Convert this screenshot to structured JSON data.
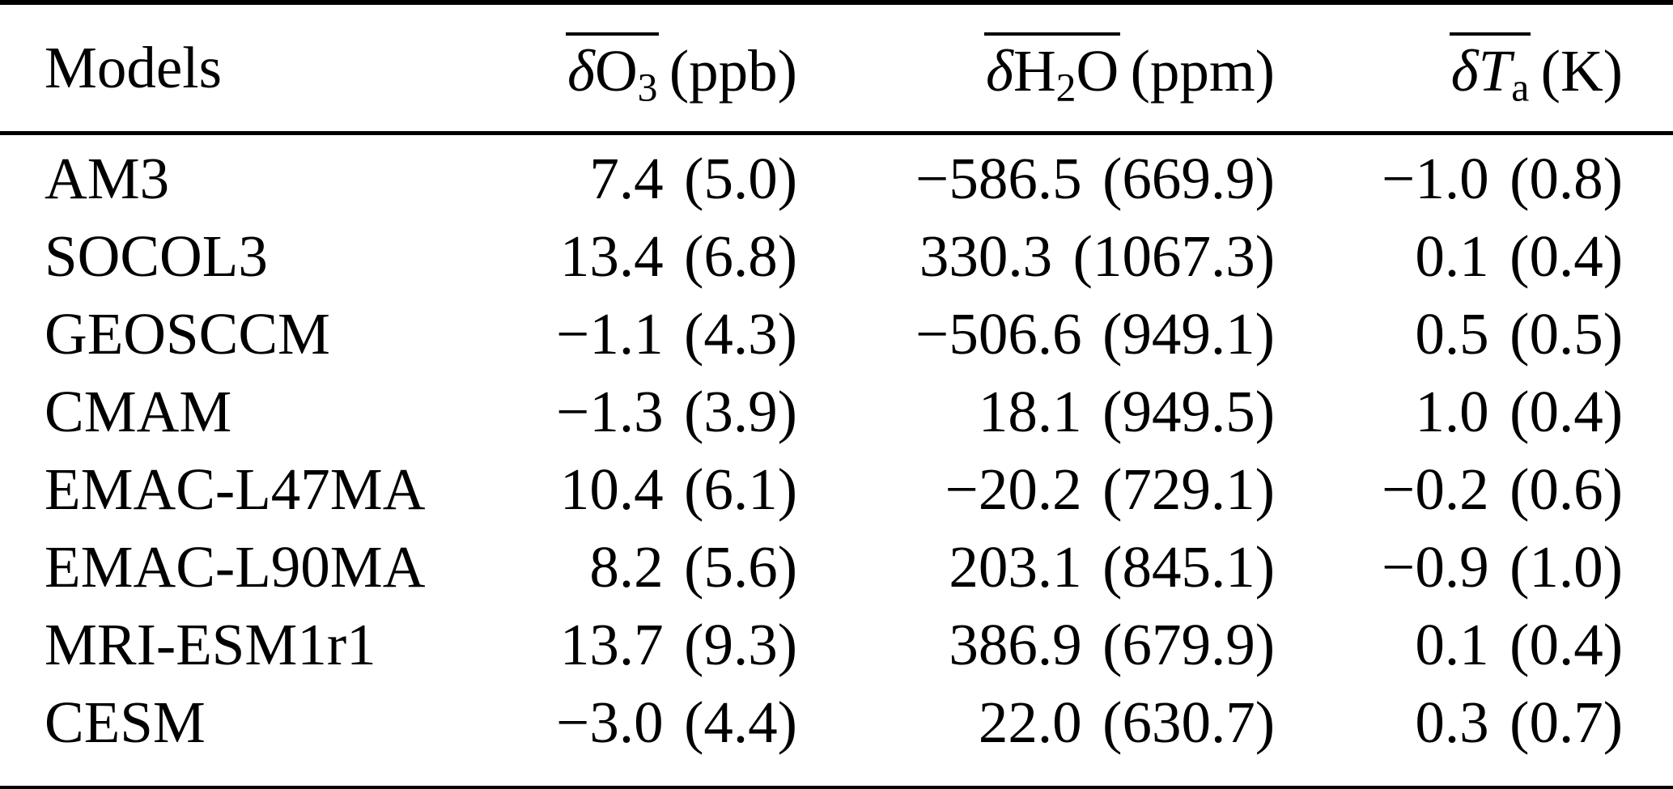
{
  "page": {
    "background": "#ffffff",
    "text_color": "#000000",
    "rule_color": "#000000"
  },
  "header": {
    "models_label": "Models",
    "o3": {
      "delta": "δ",
      "species": "O",
      "subscript": "3",
      "unit": "(ppb)"
    },
    "h2o": {
      "delta": "δ",
      "part1": "H",
      "subscript": "2",
      "part2": "O",
      "unit": "(ppm)"
    },
    "ta": {
      "delta": "δ",
      "symbol": "T",
      "subscript": "a",
      "unit": "(K)"
    }
  },
  "rows": [
    {
      "model": "AM3",
      "o3": "7.4 (5.0)",
      "h2o": "−586.5 (669.9)",
      "ta": "−1.0 (0.8)"
    },
    {
      "model": "SOCOL3",
      "o3": "13.4 (6.8)",
      "h2o": "330.3 (1067.3)",
      "ta": "0.1 (0.4)"
    },
    {
      "model": "GEOSCCM",
      "o3": "−1.1 (4.3)",
      "h2o": "−506.6 (949.1)",
      "ta": "0.5 (0.5)"
    },
    {
      "model": "CMAM",
      "o3": "−1.3 (3.9)",
      "h2o": "18.1 (949.5)",
      "ta": "1.0 (0.4)"
    },
    {
      "model": "EMAC-L47MA",
      "o3": "10.4 (6.1)",
      "h2o": "−20.2 (729.1)",
      "ta": "−0.2 (0.6)"
    },
    {
      "model": "EMAC-L90MA",
      "o3": "8.2 (5.6)",
      "h2o": "203.1 (845.1)",
      "ta": "−0.9 (1.0)"
    },
    {
      "model": "MRI-ESM1r1",
      "o3": "13.7 (9.3)",
      "h2o": "386.9 (679.9)",
      "ta": "0.1 (0.4)"
    },
    {
      "model": "CESM",
      "o3": "−3.0 (4.4)",
      "h2o": "22.0 (630.7)",
      "ta": "0.3 (0.7)"
    }
  ]
}
